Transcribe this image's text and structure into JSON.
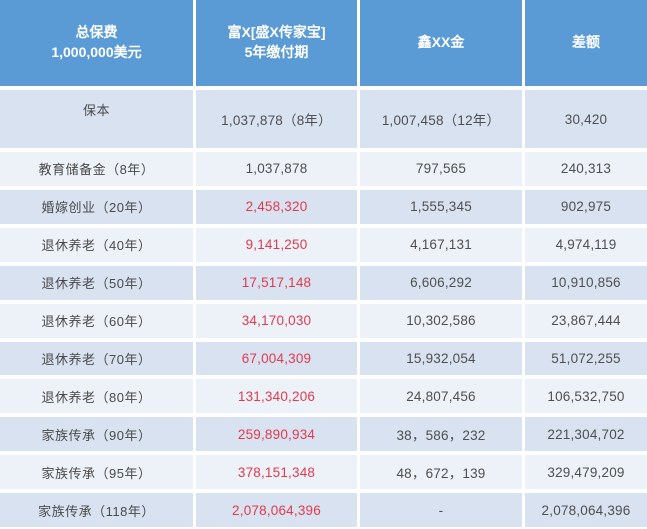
{
  "colors": {
    "header_bg": "#5b9bd5",
    "header_text": "#ffffff",
    "row_dark": "#d9e2f1",
    "row_light": "#edf1f8",
    "value_text": "#4f4f4f",
    "label_text": "#4a4a4a",
    "highlight_red": "#e23b4e",
    "gap_white": "#ffffff"
  },
  "chart_data": {
    "type": "table",
    "title": "",
    "header": {
      "premium": [
        "总保费",
        "1,000,000美元"
      ],
      "fux": [
        "富X[盛X传家宝]",
        "5年缴付期"
      ],
      "xin": "鑫XX金",
      "diff": "差额"
    },
    "rows": [
      {
        "label": "保本",
        "fux": "1,037,878（8年）",
        "xin": "1,007,458（12年）",
        "diff": "30,420",
        "fux_red": false
      },
      {
        "label": "教育储备金（8年）",
        "fux": "1,037,878",
        "xin": "797,565",
        "diff": "240,313",
        "fux_red": false
      },
      {
        "label": "婚嫁创业（20年）",
        "fux": "2,458,320",
        "xin": "1,555,345",
        "diff": "902,975",
        "fux_red": true
      },
      {
        "label": "退休养老（40年）",
        "fux": "9,141,250",
        "xin": "4,167,131",
        "diff": "4,974,119",
        "fux_red": true
      },
      {
        "label": "退休养老（50年）",
        "fux": "17,517,148",
        "xin": "6,606,292",
        "diff": "10,910,856",
        "fux_red": true
      },
      {
        "label": "退休养老（60年）",
        "fux": "34,170,030",
        "xin": "10,302,586",
        "diff": "23,867,444",
        "fux_red": true
      },
      {
        "label": "退休养老（70年）",
        "fux": "67,004,309",
        "xin": "15,932,054",
        "diff": "51,072,255",
        "fux_red": true
      },
      {
        "label": "退休养老（80年）",
        "fux": "131,340,206",
        "xin": "24,807,456",
        "diff": "106,532,750",
        "fux_red": true
      },
      {
        "label": "家族传承（90年）",
        "fux": "259,890,934",
        "xin": "38，586，232",
        "diff": "221,304,702",
        "fux_red": true
      },
      {
        "label": "家族传承（95年）",
        "fux": "378,151,348",
        "xin": "48，672，139",
        "diff": "329,479,209",
        "fux_red": true
      },
      {
        "label": "家族传承（118年）",
        "fux": "2,078,064,396",
        "xin": "-",
        "diff": "2,078,064,396",
        "fux_red": true
      }
    ]
  }
}
